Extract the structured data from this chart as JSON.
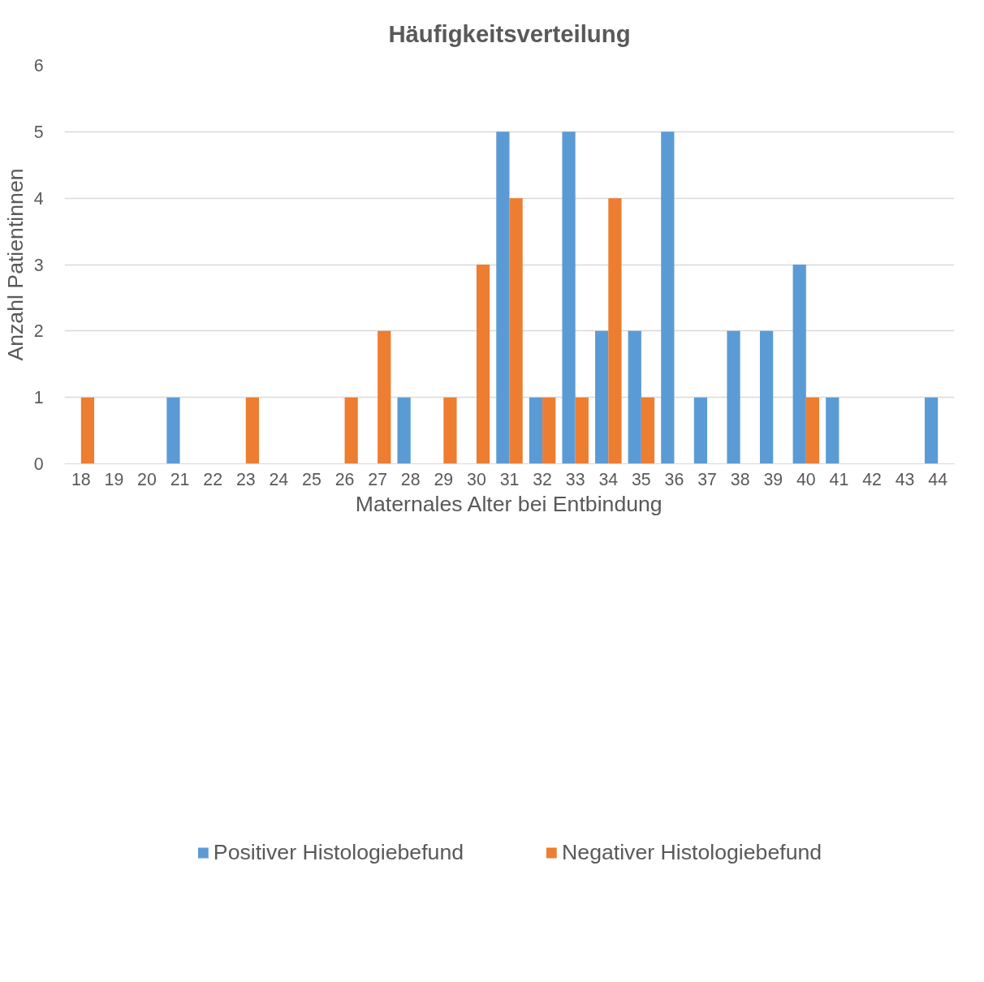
{
  "chart_data": {
    "type": "bar",
    "title": "Häufigkeitsverteilung",
    "xlabel": "Maternales Alter bei Entbindung",
    "ylabel": "Anzahl Patientinnen",
    "categories": [
      "18",
      "19",
      "20",
      "21",
      "22",
      "23",
      "24",
      "25",
      "26",
      "27",
      "28",
      "29",
      "30",
      "31",
      "32",
      "33",
      "34",
      "35",
      "36",
      "37",
      "38",
      "39",
      "40",
      "41",
      "42",
      "43",
      "44"
    ],
    "series": [
      {
        "name": "Positiver Histologiebefund",
        "color": "#5b9bd5",
        "values": [
          0,
          0,
          0,
          1,
          0,
          0,
          0,
          0,
          0,
          0,
          1,
          0,
          0,
          5,
          1,
          5,
          2,
          2,
          5,
          1,
          2,
          2,
          3,
          1,
          0,
          0,
          1
        ]
      },
      {
        "name": "Negativer Histologiebefund",
        "color": "#ed7d31",
        "values": [
          1,
          0,
          0,
          0,
          0,
          1,
          0,
          0,
          1,
          2,
          0,
          1,
          3,
          4,
          1,
          1,
          4,
          1,
          0,
          0,
          0,
          0,
          1,
          0,
          0,
          0,
          0
        ]
      }
    ],
    "ylim": [
      0,
      6
    ],
    "yticks": [
      0,
      1,
      2,
      3,
      4,
      5,
      6
    ],
    "grid": "y",
    "legend": "bottom"
  }
}
